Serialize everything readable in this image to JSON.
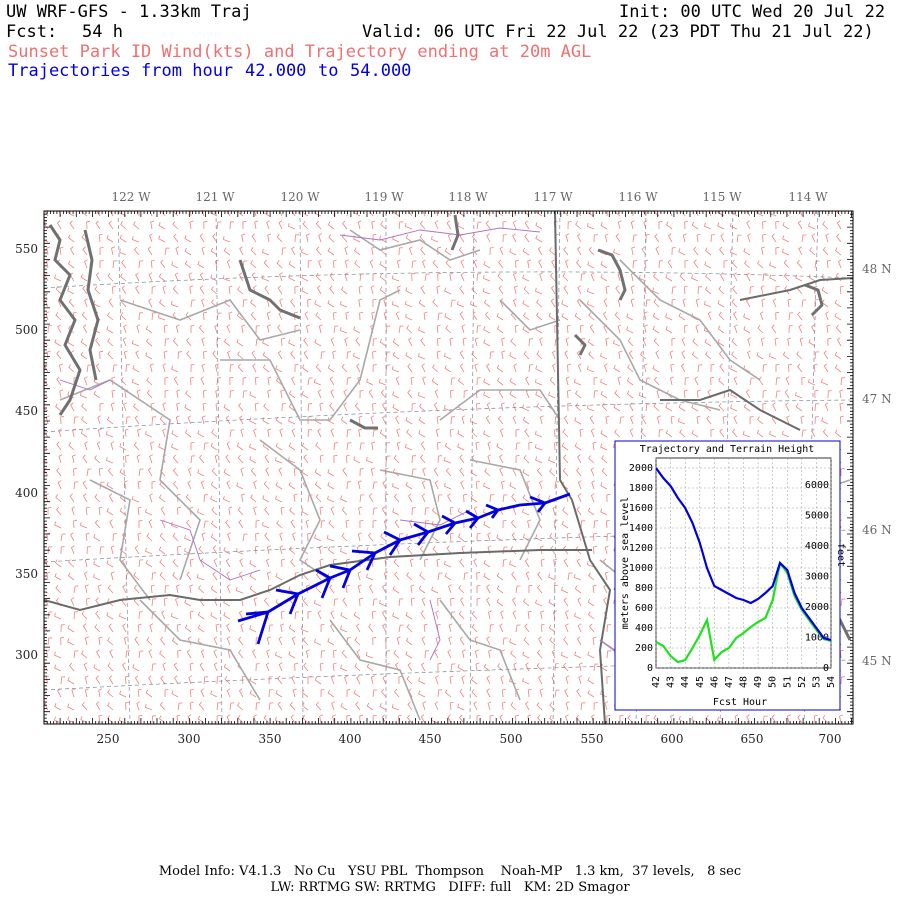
{
  "header": {
    "title": "UW WRF-GFS - 1.33km Traj",
    "init": "Init: 00 UTC Wed 20 Jul 22",
    "fcst_label": "Fcst:",
    "fcst_value": "54 h",
    "valid": "Valid: 06 UTC Fri 22 Jul 22 (23 PDT Thu 21 Jul 22)",
    "subtitle": "Sunset Park ID Wind(kts) and Trajectory ending at 20m AGL",
    "traj_range_label": "Trajectories from hour",
    "traj_from": "42.000",
    "traj_to_word": "to",
    "traj_to": "54.000"
  },
  "map": {
    "lon_labels": [
      "122 W",
      "121 W",
      "120 W",
      "119 W",
      "118 W",
      "117 W",
      "116 W",
      "115 W",
      "114 W"
    ],
    "lat_labels": [
      "48 N",
      "47 N",
      "46 N",
      "45 N"
    ],
    "x_ticks": [
      "250",
      "300",
      "350",
      "400",
      "450",
      "500",
      "550",
      "600",
      "650",
      "700"
    ],
    "y_ticks": [
      "550",
      "500",
      "450",
      "400",
      "350",
      "300"
    ],
    "colors": {
      "wind_barbs": "#f08080",
      "trajectory": "#0000e0",
      "borders": "#a0a0a0",
      "water": "#707070",
      "rivers": "#b070c0"
    }
  },
  "inset": {
    "title": "Trajectory and Terrain Height",
    "ylabel_left": "meters above sea level",
    "ylabel_right": "feet",
    "xlabel": "Fcst Hour",
    "left_ticks": [
      "2000",
      "1800",
      "1600",
      "1400",
      "1200",
      "1000",
      "800",
      "600",
      "400",
      "200",
      "0"
    ],
    "right_ticks": [
      "6000",
      "5000",
      "4000",
      "3000",
      "2000",
      "1000",
      "0"
    ],
    "x_ticks": [
      "42",
      "43",
      "44",
      "45",
      "46",
      "47",
      "48",
      "49",
      "50",
      "51",
      "52",
      "53",
      "54"
    ]
  },
  "chart_data": {
    "type": "line",
    "title": "Trajectory and Terrain Height",
    "xlabel": "Fcst Hour",
    "ylabel": "meters above sea level",
    "xlim": [
      42,
      54
    ],
    "ylim": [
      0,
      2100
    ],
    "series": [
      {
        "name": "",
        "color": "#0000e0",
        "x": [
          42,
          42.5,
          43,
          43.5,
          44,
          44.5,
          45,
          45.5,
          46,
          46.5,
          47,
          47.5,
          48,
          48.5,
          49,
          49.5,
          50,
          50.5,
          51,
          51.5,
          52,
          52.5,
          53,
          53.5,
          54
        ],
        "y": [
          2000,
          1900,
          1820,
          1700,
          1600,
          1450,
          1250,
          1000,
          820,
          780,
          740,
          700,
          680,
          650,
          690,
          750,
          820,
          1050,
          980,
          750,
          600,
          500,
          400,
          300,
          280
        ]
      },
      {
        "name": "",
        "color": "#20e020",
        "x": [
          42,
          42.5,
          43,
          43.5,
          44,
          44.5,
          45,
          45.5,
          46,
          46.5,
          47,
          47.5,
          48,
          48.5,
          49,
          49.5,
          50,
          50.5,
          51,
          51.5,
          52,
          52.5,
          53,
          53.5,
          54
        ],
        "y": [
          260,
          220,
          120,
          60,
          80,
          200,
          330,
          480,
          80,
          160,
          200,
          300,
          350,
          410,
          460,
          500,
          680,
          1050,
          950,
          720,
          580,
          480,
          380,
          290,
          270
        ]
      }
    ]
  },
  "footer": {
    "line1": "Model Info: V4.1.3   No Cu   YSU PBL  Thompson    Noah-MP   1.3 km,  37 levels,   8 sec",
    "line2": "LW: RRTMG SW: RRTMG   DIFF: full   KM: 2D Smagor"
  }
}
